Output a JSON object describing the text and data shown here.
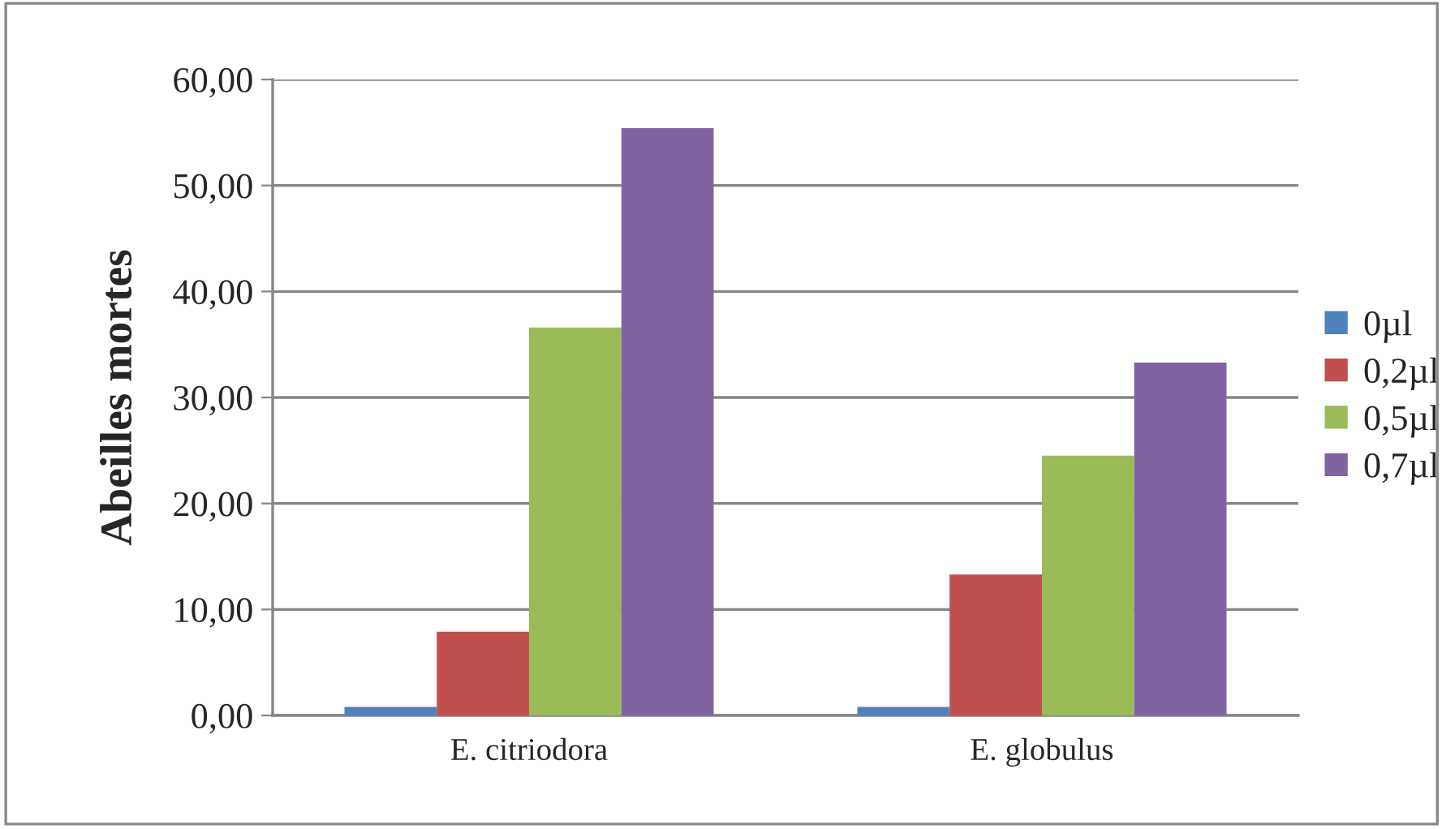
{
  "chart_data": {
    "type": "bar",
    "ylabel": "Abeilles mortes",
    "categories": [
      "E. citriodora",
      "E. globulus"
    ],
    "series": [
      {
        "name": "0µl",
        "color": "#4f81bd",
        "values": [
          0.8,
          0.8
        ]
      },
      {
        "name": "0,2µl",
        "color": "#c0504d",
        "values": [
          7.9,
          13.3
        ]
      },
      {
        "name": "0,5µl",
        "color": "#9bbb59",
        "values": [
          36.6,
          24.5
        ]
      },
      {
        "name": "0,7µl",
        "color": "#8064a2",
        "values": [
          55.4,
          33.3
        ]
      }
    ],
    "ylim": [
      0,
      60
    ],
    "yticks": [
      {
        "value": 0,
        "label": "0,00"
      },
      {
        "value": 10,
        "label": "10,00"
      },
      {
        "value": 20,
        "label": "20,00"
      },
      {
        "value": 30,
        "label": "30,00"
      },
      {
        "value": 40,
        "label": "40,00"
      },
      {
        "value": 50,
        "label": "50,00"
      },
      {
        "value": 60,
        "label": "60,00"
      }
    ],
    "grid": "y",
    "legend": "right"
  }
}
